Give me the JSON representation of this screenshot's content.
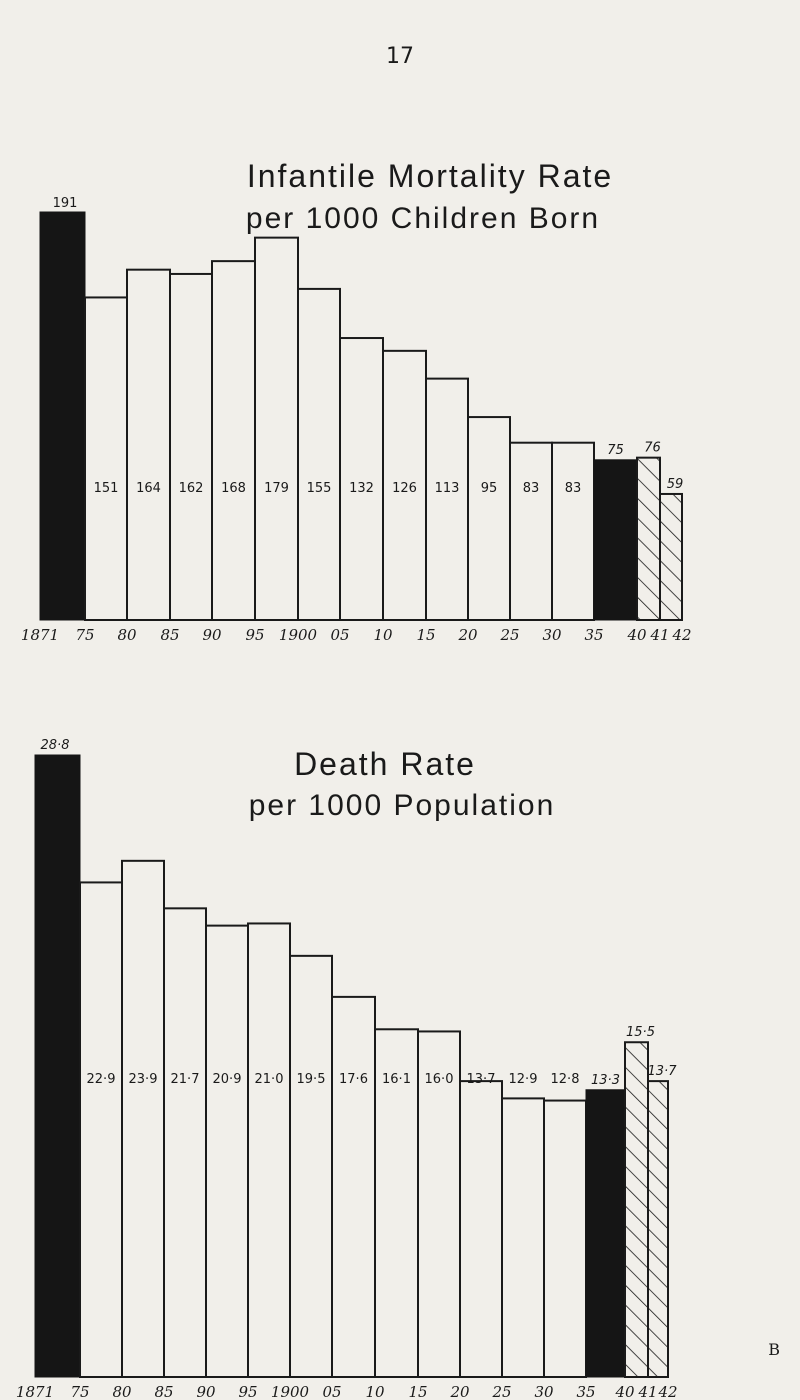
{
  "page_number": "17",
  "signature": "B",
  "colors": {
    "ink": "#1a1a1a",
    "paper": "#f1efea",
    "black_bar": "#151515"
  },
  "chart_data": [
    {
      "type": "bar",
      "title_line1": "Infantile Mortality Rate",
      "title_line2": "per 1000 Children Born",
      "top_label": "191",
      "x_tick_labels": [
        "1871",
        "75",
        "80",
        "85",
        "90",
        "95",
        "1900",
        "05",
        "10",
        "15",
        "20",
        "25",
        "30",
        "35",
        "40",
        "41",
        "42"
      ],
      "categories": [
        "1871-75",
        "1876-80",
        "1881-85",
        "1886-90",
        "1891-95",
        "1896-1900",
        "1901-05",
        "1906-10",
        "1911-15",
        "1916-20",
        "1921-25",
        "1926-30",
        "1931-35",
        "1936-40",
        "1940-41",
        "1941-42"
      ],
      "values": [
        191,
        151,
        164,
        162,
        168,
        179,
        155,
        132,
        126,
        113,
        95,
        83,
        83,
        75,
        76,
        59
      ],
      "value_labels": [
        "",
        "151",
        "164",
        "162",
        "168",
        "179",
        "155",
        "132",
        "126",
        "113",
        "95",
        "83",
        "83",
        "",
        "",
        ""
      ],
      "top_value_labels": [
        "",
        "",
        "",
        "",
        "",
        "",
        "",
        "",
        "",
        "",
        "",
        "",
        "",
        "75",
        "76",
        "59"
      ],
      "styles": [
        "black",
        "outline",
        "outline",
        "outline",
        "outline",
        "outline",
        "outline",
        "outline",
        "outline",
        "outline",
        "outline",
        "outline",
        "outline",
        "black",
        "hatch",
        "hatch"
      ],
      "ylim": [
        0,
        191
      ]
    },
    {
      "type": "bar",
      "title_line1": "Death Rate",
      "title_line2": "per 1000 Population",
      "top_label": "28·8",
      "x_tick_labels": [
        "1871",
        "75",
        "80",
        "85",
        "90",
        "95",
        "1900",
        "05",
        "10",
        "15",
        "20",
        "25",
        "30",
        "35",
        "40",
        "41",
        "42"
      ],
      "categories": [
        "1871-75",
        "1876-80",
        "1881-85",
        "1886-90",
        "1891-95",
        "1896-1900",
        "1901-05",
        "1906-10",
        "1911-15",
        "1916-20",
        "1921-25",
        "1926-30",
        "1931-35",
        "1936-40",
        "1940-41",
        "1941-42"
      ],
      "values": [
        28.8,
        22.9,
        23.9,
        21.7,
        20.9,
        21.0,
        19.5,
        17.6,
        16.1,
        16.0,
        13.7,
        12.9,
        12.8,
        13.3,
        15.5,
        13.7
      ],
      "value_labels": [
        "",
        "22·9",
        "23·9",
        "21·7",
        "20·9",
        "21·0",
        "19·5",
        "17·6",
        "16·1",
        "16·0",
        "13·7",
        "12·9",
        "12·8",
        "",
        "",
        ""
      ],
      "top_value_labels": [
        "",
        "",
        "",
        "",
        "",
        "",
        "",
        "",
        "",
        "",
        "",
        "",
        "",
        "13·3",
        "15·5",
        "13·7"
      ],
      "styles": [
        "black",
        "outline",
        "outline",
        "outline",
        "outline",
        "outline",
        "outline",
        "outline",
        "outline",
        "outline",
        "outline",
        "outline",
        "outline",
        "black",
        "hatch",
        "hatch"
      ],
      "ylim": [
        0,
        28.8
      ]
    }
  ]
}
